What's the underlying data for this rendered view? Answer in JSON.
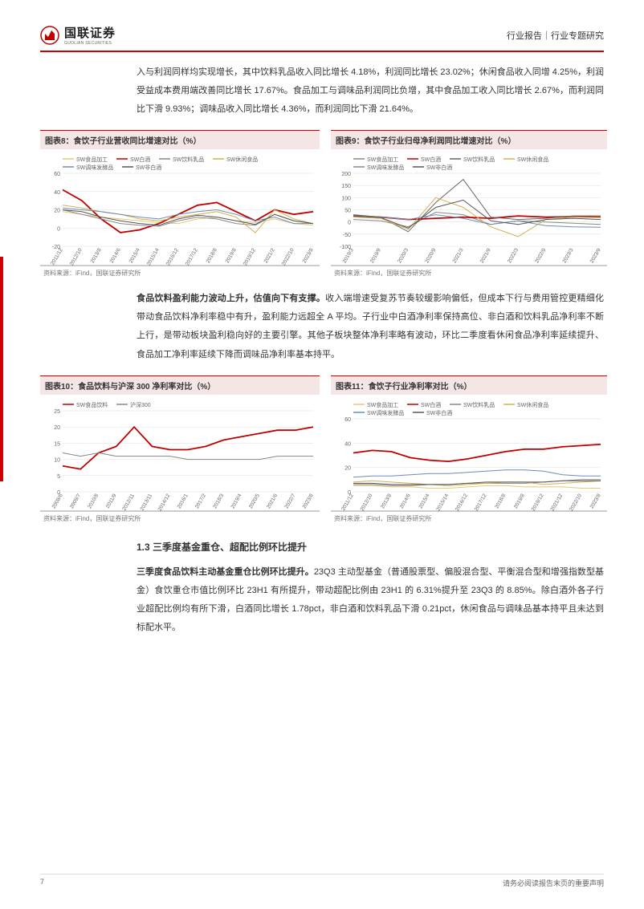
{
  "header": {
    "logo_cn": "国联证券",
    "logo_en": "GUOLIAN SECURITIES",
    "right": "行业报告｜行业专题研究"
  },
  "paragraphs": {
    "p1": "入与利润同样均实现增长，其中饮料乳品收入同比增长 4.18%，利润同比增长 23.02%；休闲食品收入同增 4.25%，利润受益成本费用端改善同比增长 17.67%。食品加工与调味品利润同比负增，其中食品加工收入同比增长 2.67%，而利润同比下滑 9.93%；调味品收入同比增长 4.36%，而利润同比下滑 21.64%。",
    "p2_bold": "食品饮料盈利能力波动上升，估值向下有支撑。",
    "p2_rest": "收入端增速受复苏节奏较缓影响偏低，但成本下行与费用管控更精细化带动食品饮料净利率稳中有升，盈利能力远超全 A 平均。子行业中白酒净利率保持高位、非白酒和饮料乳品净利率不断上行，是带动板块盈利稳向好的主要引擎。其他子板块整体净利率略有波动，环比二季度看休闲食品净利率延续提升、食品加工净利率延续下降而调味品净利率基本持平。",
    "p3_bold": "三季度食品饮料主动基金重仓比例环比提升。",
    "p3_rest": "23Q3 主动型基金（普通股票型、偏股混合型、平衡混合型和增强指数型基金）食饮重仓市值比例环比 23H1 有所提升，带动超配比例由 23H1 的 6.31%提升至 23Q3 的 8.85%。除白酒外各子行业超配比例均有所下滑，白酒同比增长 1.78pct，非白酒和饮料乳品下滑 0.21pct，休闲食品与调味品基本持平且未达到标配水平。"
  },
  "section_heading": "1.3 三季度基金重仓、超配比例环比提升",
  "charts": {
    "c8": {
      "title": "图表8：食饮子行业营收同比增速对比（%）",
      "source": "资料来源：iFind，国联证券研究所",
      "legend": [
        {
          "label": "SW食品加工",
          "color": "#e8c878"
        },
        {
          "label": "SW白酒",
          "color": "#c00000"
        },
        {
          "label": "SW饮料乳品",
          "color": "#888888"
        },
        {
          "label": "SW休闲食品",
          "color": "#d4b050"
        },
        {
          "label": "SW调味发酵品",
          "color": "#6b8db5"
        },
        {
          "label": "SW非白酒",
          "color": "#555555"
        }
      ],
      "ylim": [
        -20,
        60
      ],
      "ytick_step": 20,
      "xlabels": [
        "2011/12",
        "2012/10",
        "2013/8",
        "2014/6",
        "2015/4",
        "2015/14",
        "2016/12",
        "2017/12",
        "2018/8",
        "2019/8",
        "2019/12",
        "2021/2",
        "2022/10",
        "2023/8"
      ],
      "series": {
        "SW食品加工": [
          18,
          15,
          12,
          10,
          8,
          6,
          5,
          10,
          12,
          8,
          6,
          10,
          5,
          3
        ],
        "SW白酒": [
          42,
          30,
          10,
          -5,
          -2,
          5,
          15,
          25,
          28,
          18,
          8,
          20,
          15,
          18
        ],
        "SW饮料乳品": [
          20,
          15,
          10,
          5,
          3,
          2,
          8,
          12,
          10,
          5,
          3,
          15,
          8,
          5
        ],
        "SW休闲食品": [
          25,
          22,
          18,
          15,
          10,
          8,
          12,
          15,
          18,
          12,
          -5,
          20,
          10,
          5
        ],
        "SW调味发酵品": [
          22,
          20,
          18,
          15,
          12,
          10,
          15,
          18,
          20,
          15,
          8,
          12,
          5,
          5
        ],
        "SW非白酒": [
          20,
          18,
          12,
          8,
          5,
          3,
          10,
          14,
          12,
          8,
          4,
          15,
          8,
          5
        ]
      }
    },
    "c9": {
      "title": "图表9：食饮子行业归母净利润同比增速对比（%）",
      "source": "资料来源：iFind，国联证券研究所",
      "legend": [
        {
          "label": "SW食品加工",
          "color": "#888888"
        },
        {
          "label": "SW白酒",
          "color": "#c00000"
        },
        {
          "label": "SW饮料乳品",
          "color": "#666666"
        },
        {
          "label": "SW休闲食品",
          "color": "#d4b050"
        },
        {
          "label": "SW调味发酵品",
          "color": "#6b8db5"
        },
        {
          "label": "SW非白酒",
          "color": "#555555"
        }
      ],
      "ylim": [
        -100,
        200
      ],
      "ytick_step": 50,
      "xlabels": [
        "2019/3",
        "2019/9",
        "2020/3",
        "2020/9",
        "2021/3",
        "2021/9",
        "2022/3",
        "2022/9",
        "2023/3",
        "2023/9"
      ],
      "series": {
        "SW食品加工": [
          10,
          5,
          -20,
          40,
          30,
          -10,
          5,
          0,
          -5,
          -10
        ],
        "SW白酒": [
          25,
          20,
          10,
          15,
          20,
          15,
          25,
          20,
          22,
          20
        ],
        "SW饮料乳品": [
          30,
          20,
          -40,
          80,
          175,
          20,
          10,
          15,
          25,
          25
        ],
        "SW休闲食品": [
          20,
          15,
          -30,
          100,
          60,
          -20,
          -60,
          10,
          20,
          18
        ],
        "SW调味发酵品": [
          25,
          20,
          10,
          30,
          15,
          -10,
          5,
          -15,
          -20,
          -22
        ],
        "SW非白酒": [
          25,
          18,
          -25,
          60,
          90,
          5,
          -10,
          10,
          15,
          10
        ]
      }
    },
    "c10": {
      "title": "图表10：食品饮料与沪深 300 净利率对比（%）",
      "source": "资料来源：iFind，国联证券研究所",
      "legend": [
        {
          "label": "SW食品饮料",
          "color": "#c00000"
        },
        {
          "label": "沪深300",
          "color": "#888888"
        }
      ],
      "ylim": [
        0,
        25
      ],
      "ytick_step": 5,
      "xlabels": [
        "2008/6",
        "2009/7",
        "2010/8",
        "2011/9",
        "2012/11",
        "2013/11",
        "2014/12",
        "2016/1",
        "2017/2",
        "2018/3",
        "2019/4",
        "2020/5",
        "2021/6",
        "2022/7",
        "2023/8"
      ],
      "series": {
        "SW食品饮料": [
          8,
          7,
          12,
          14,
          20,
          14,
          13,
          13,
          14,
          16,
          17,
          18,
          19,
          19,
          20
        ],
        "沪深300": [
          12,
          11,
          12,
          11,
          11,
          11,
          11,
          10,
          10,
          10,
          10,
          10,
          11,
          11,
          11
        ]
      }
    },
    "c11": {
      "title": "图表11：食饮子行业净利率对比（%）",
      "source": "资料来源：iFind，国联证券研究所",
      "legend": [
        {
          "label": "SW食品加工",
          "color": "#e8c878"
        },
        {
          "label": "SW白酒",
          "color": "#c00000"
        },
        {
          "label": "SW饮料乳品",
          "color": "#888888"
        },
        {
          "label": "SW休闲食品",
          "color": "#d4b050"
        },
        {
          "label": "SW调味发酵品",
          "color": "#6b8db5"
        },
        {
          "label": "SW非白酒",
          "color": "#555555"
        }
      ],
      "ylim": [
        0,
        60
      ],
      "ytick_step": 20,
      "xlabels": [
        "2011/12",
        "2012/10",
        "2013/8",
        "2014/6",
        "2015/4",
        "2015/14",
        "2016/12",
        "2017/12",
        "2018/8",
        "2019/8",
        "2019/12",
        "2021/12",
        "2022/10",
        "2023/8"
      ],
      "series": {
        "SW食品加工": [
          5,
          5,
          4,
          4,
          3,
          3,
          4,
          5,
          5,
          4,
          4,
          4,
          3,
          3
        ],
        "SW白酒": [
          32,
          34,
          33,
          28,
          26,
          25,
          27,
          30,
          33,
          35,
          35,
          37,
          38,
          39
        ],
        "SW饮料乳品": [
          6,
          6,
          5,
          5,
          6,
          6,
          7,
          7,
          7,
          7,
          8,
          9,
          10,
          10
        ],
        "SW休闲食品": [
          8,
          9,
          8,
          7,
          6,
          5,
          6,
          7,
          8,
          8,
          6,
          7,
          8,
          9
        ],
        "SW调味发酵品": [
          12,
          13,
          13,
          14,
          15,
          15,
          16,
          17,
          18,
          18,
          17,
          14,
          13,
          13
        ],
        "SW非白酒": [
          7,
          7,
          6,
          6,
          6,
          6,
          7,
          8,
          8,
          8,
          8,
          9,
          9,
          9
        ]
      }
    }
  },
  "footer": {
    "page": "7",
    "disclaimer": "请务必阅读报告末页的重要声明"
  },
  "colors": {
    "brand_red": "#c00000",
    "grid": "#dddddd",
    "title_bg": "#f5e6e6"
  }
}
